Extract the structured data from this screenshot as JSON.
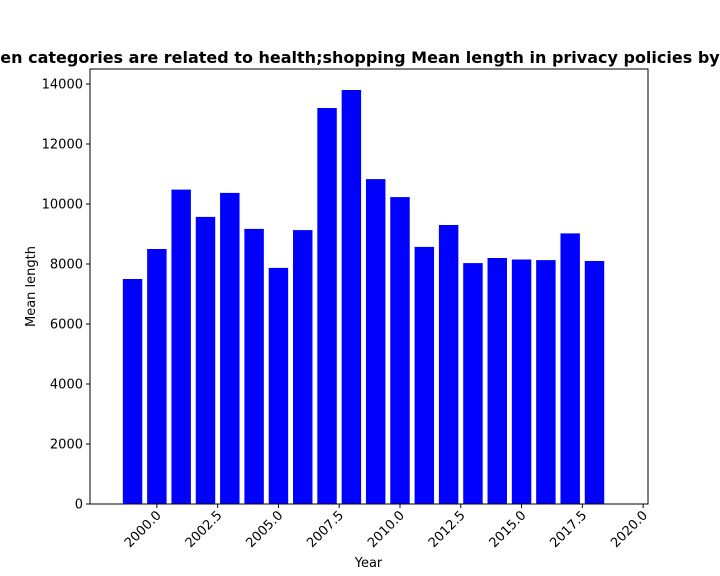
{
  "chart_data": {
    "type": "bar",
    "title": "en categories are related to health;shopping Mean length in privacy policies by",
    "xlabel": "Year",
    "ylabel": "Mean length",
    "x": [
      1999,
      2000,
      2001,
      2002,
      2003,
      2004,
      2005,
      2006,
      2007,
      2008,
      2009,
      2010,
      2011,
      2012,
      2013,
      2014,
      2015,
      2016,
      2017,
      2018
    ],
    "values": [
      7500,
      8500,
      10480,
      9570,
      10370,
      9170,
      7870,
      9130,
      13200,
      13800,
      10830,
      10230,
      8570,
      9300,
      8030,
      8200,
      8150,
      8130,
      9020,
      8100
    ],
    "xlim": [
      1997.25,
      2020.2
    ],
    "ylim": [
      0,
      14500
    ],
    "xticks": [
      2000.0,
      2002.5,
      2005.0,
      2007.5,
      2010.0,
      2012.5,
      2015.0,
      2017.5,
      2020.0
    ],
    "xtick_labels": [
      "2000.0",
      "2002.5",
      "2005.0",
      "2007.5",
      "2010.0",
      "2012.5",
      "2015.0",
      "2017.5",
      "2020.0"
    ],
    "yticks": [
      0,
      2000,
      4000,
      6000,
      8000,
      10000,
      12000,
      14000
    ],
    "ytick_labels": [
      "0",
      "2000",
      "4000",
      "6000",
      "8000",
      "10000",
      "12000",
      "14000"
    ],
    "bar_width": 0.8,
    "bar_color": "#0000ff",
    "grid": false,
    "legend": "none"
  }
}
